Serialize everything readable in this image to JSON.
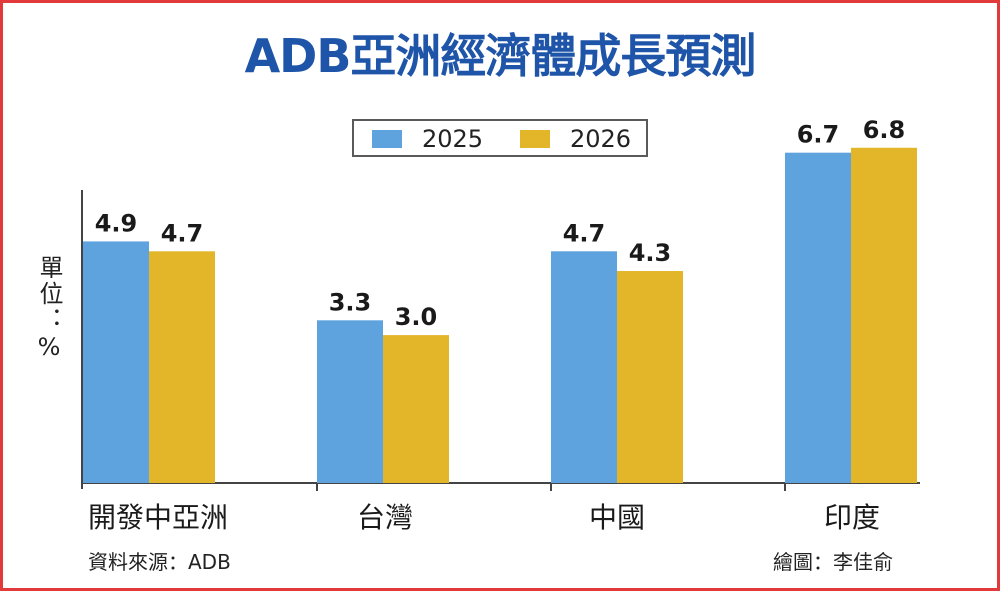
{
  "chart_data": {
    "type": "bar",
    "title": "ADB亞洲經濟體成長預測",
    "ylabel": "單位：%",
    "categories": [
      "開發中亞洲",
      "台灣",
      "中國",
      "印度"
    ],
    "series": [
      {
        "name": "2025",
        "values": [
          4.9,
          3.3,
          4.7,
          6.7
        ],
        "color": "#5ea3de"
      },
      {
        "name": "2026",
        "values": [
          4.7,
          3.0,
          4.3,
          6.8
        ],
        "color": "#e3b62a"
      }
    ],
    "data_labels": [
      [
        "4.9",
        "3.3",
        "4.7",
        "6.7"
      ],
      [
        "4.7",
        "3.0",
        "4.3",
        "6.8"
      ]
    ],
    "ylim": [
      0,
      7
    ],
    "grid": false,
    "legend_position": "top-center"
  },
  "source": "資料來源：ADB",
  "credit": "繪圖：李佳俞",
  "colors": {
    "title": "#1f55a8",
    "frame": "#e23a3a",
    "axis": "#444444"
  }
}
